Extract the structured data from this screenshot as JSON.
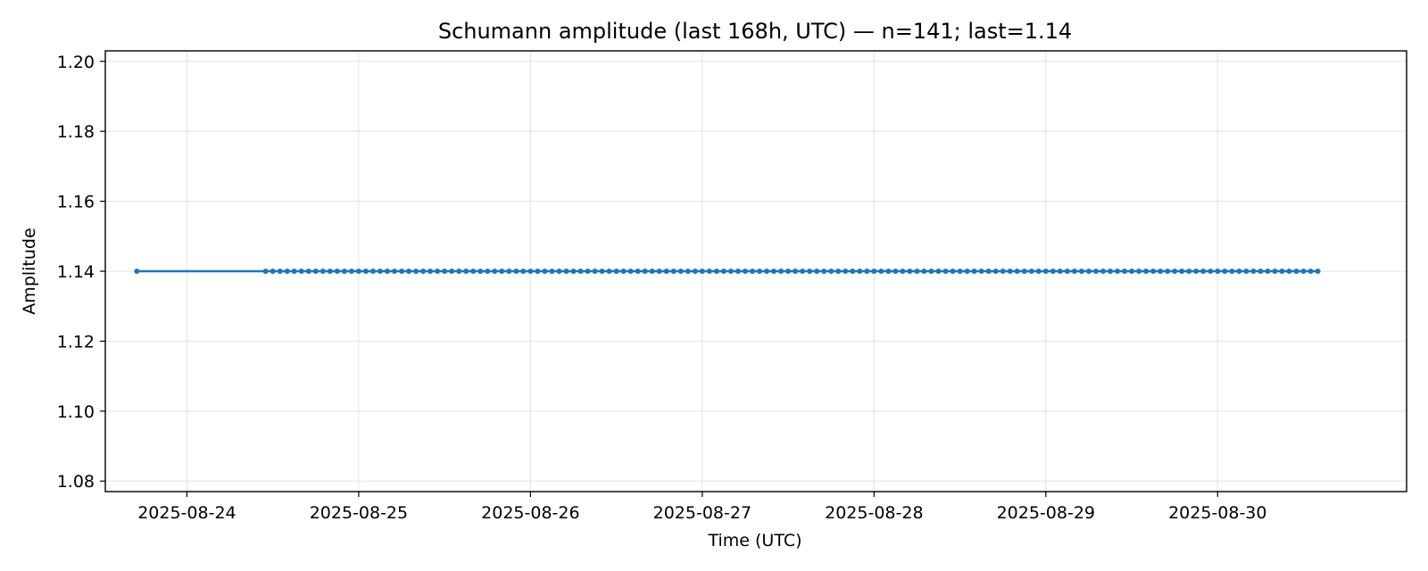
{
  "chart_data": {
    "type": "line",
    "title": "Schumann amplitude (last 168h, UTC) — n=141; last=1.14",
    "xlabel": "Time (UTC)",
    "ylabel": "Amplitude",
    "x_ticks": [
      "2025-08-24",
      "2025-08-25",
      "2025-08-26",
      "2025-08-27",
      "2025-08-28",
      "2025-08-29",
      "2025-08-30"
    ],
    "y_ticks": [
      "1.08",
      "1.10",
      "1.12",
      "1.14",
      "1.16",
      "1.18",
      "1.20"
    ],
    "xlim": [
      "2025-08-23 12:36",
      "2025-08-31 02:24"
    ],
    "ylim": [
      1.077,
      1.203
    ],
    "grid": true,
    "series": [
      {
        "color": "#1f77b4",
        "marker": "circle",
        "values_constant": 1.14,
        "x_start": "2025-08-23 17:00",
        "gap_until": "2025-08-24 11:00",
        "x_end": "2025-08-30 14:00",
        "sampling": "hourly"
      }
    ]
  }
}
